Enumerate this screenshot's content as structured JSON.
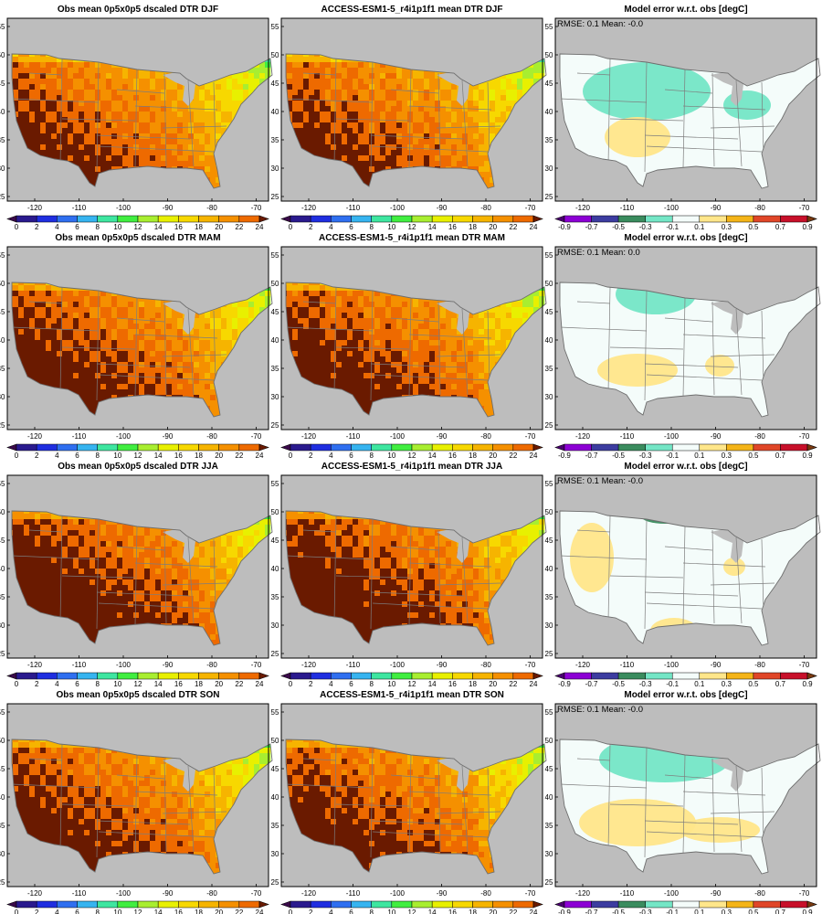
{
  "figure": {
    "rows": [
      {
        "season": "DJF",
        "titles": [
          "Obs mean 0p5x0p5 dscaled DTR DJF",
          "ACCESS-ESM1-5_r4i1p1f1 mean DTR DJF",
          "Model error w.r.t. obs [degC]"
        ],
        "stats": "RMSE: 0.1  Mean: -0.0"
      },
      {
        "season": "MAM",
        "titles": [
          "Obs mean 0p5x0p5 dscaled DTR MAM",
          "ACCESS-ESM1-5_r4i1p1f1 mean DTR MAM",
          "Model error w.r.t. obs [degC]"
        ],
        "stats": "RMSE: 0.1  Mean: 0.0"
      },
      {
        "season": "JJA",
        "titles": [
          "Obs mean 0p5x0p5 dscaled DTR JJA",
          "ACCESS-ESM1-5_r4i1p1f1 mean DTR JJA",
          "Model error w.r.t. obs [degC]"
        ],
        "stats": "RMSE: 0.1  Mean: -0.0"
      },
      {
        "season": "SON",
        "titles": [
          "Obs mean 0p5x0p5 dscaled DTR SON",
          "ACCESS-ESM1-5_r4i1p1f1 mean DTR SON",
          "Model error w.r.t. obs [degC]"
        ],
        "stats": "RMSE: 0.1  Mean: -0.0"
      }
    ],
    "lon_ticks": [
      "-120",
      "-110",
      "-100",
      "-90",
      "-80",
      "-70"
    ],
    "lat_ticks": [
      "25",
      "30",
      "35",
      "40",
      "45",
      "50",
      "55"
    ],
    "mean_colorbar": {
      "labels": [
        "0",
        "2",
        "4",
        "6",
        "8",
        "10",
        "12",
        "14",
        "16",
        "18",
        "20",
        "22",
        "24"
      ],
      "colors": [
        "#3a0a4a",
        "#2a1a8e",
        "#1f2ee0",
        "#2f6ff0",
        "#36b4f0",
        "#3ee6a0",
        "#40ee40",
        "#a8ee30",
        "#e8f000",
        "#f7d800",
        "#f6b400",
        "#f59000",
        "#ee6a00",
        "#6a1a00"
      ]
    },
    "error_colorbar": {
      "labels": [
        "-0.9",
        "-0.7",
        "-0.5",
        "-0.3",
        "-0.1",
        "0.1",
        "0.3",
        "0.5",
        "0.7",
        "0.9"
      ],
      "colors": [
        "#4b0070",
        "#8c00d4",
        "#3c3ca0",
        "#3a8c5e",
        "#74e6c6",
        "#f4fcfa",
        "#ffe68a",
        "#f4b418",
        "#e04628",
        "#c8102a",
        "#7a3a10"
      ]
    }
  }
}
